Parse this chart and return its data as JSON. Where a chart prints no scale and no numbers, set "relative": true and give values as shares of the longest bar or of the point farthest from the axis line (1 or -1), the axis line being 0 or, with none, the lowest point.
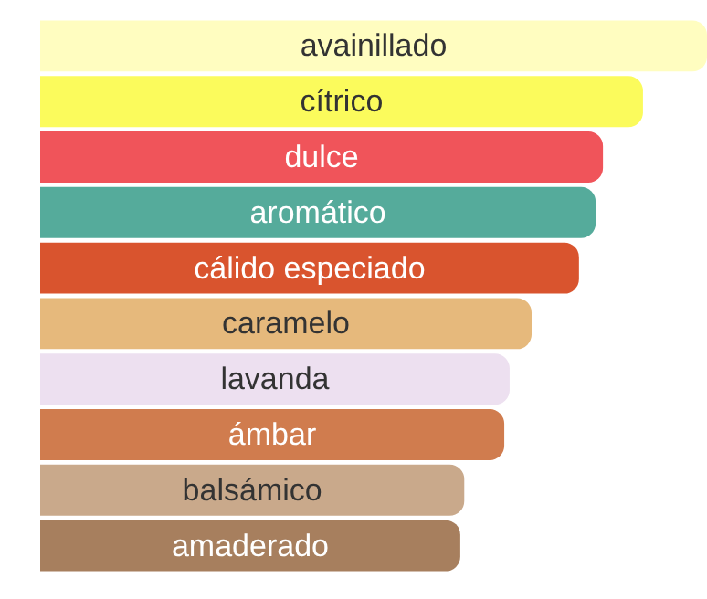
{
  "chart_data": {
    "type": "bar",
    "orientation": "horizontal",
    "relative": true,
    "categories": [
      "avainillado",
      "cítrico",
      "dulce",
      "aromático",
      "cálido especiado",
      "caramelo",
      "lavanda",
      "ámbar",
      "balsámico",
      "amaderado"
    ],
    "values": [
      1,
      0.904,
      0.844,
      0.833,
      0.808,
      0.737,
      0.704,
      0.696,
      0.636,
      0.63
    ],
    "colors": [
      "#fffdc0",
      "#fbfb5c",
      "#f0545a",
      "#55ab9b",
      "#d9542e",
      "#e6b97c",
      "#ede0f0",
      "#d07c4e",
      "#c9a98b",
      "#a77f5e"
    ]
  }
}
